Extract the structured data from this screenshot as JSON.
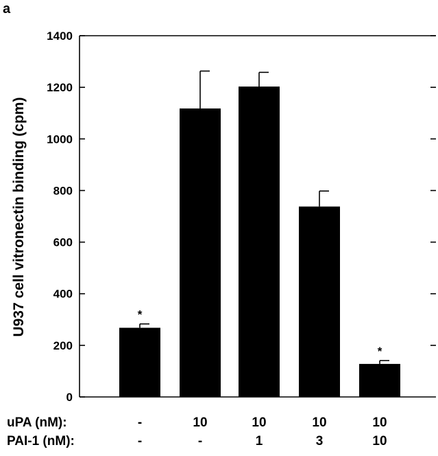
{
  "panel_label": "a",
  "chart_data": {
    "type": "bar",
    "title": "",
    "xlabel": "",
    "ylabel": "U937 cell vitronectin binding (cpm)",
    "ylim": [
      0,
      1400
    ],
    "yticks": [
      0,
      200,
      400,
      600,
      800,
      1000,
      1200,
      1400
    ],
    "bar_color": "#000000",
    "values": [
      268,
      1118,
      1203,
      738,
      128
    ],
    "errors": [
      15,
      145,
      55,
      60,
      13
    ],
    "significance": [
      "*",
      "",
      "",
      "",
      "*"
    ],
    "conditions": [
      {
        "label": "uPA (nM):",
        "values": [
          "-",
          "10",
          "10",
          "10",
          "10"
        ]
      },
      {
        "label": "PAI-1 (nM):",
        "values": [
          "-",
          "-",
          "1",
          "3",
          "10"
        ]
      }
    ]
  }
}
